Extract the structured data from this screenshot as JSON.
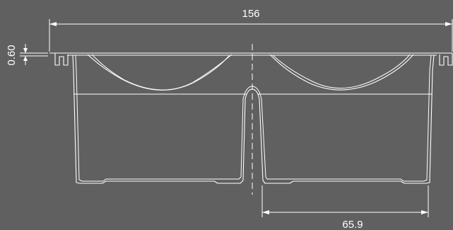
{
  "dimensions": {
    "overall_width": "156",
    "rim_thickness": "0.60",
    "compartment_width": "65.9"
  }
}
